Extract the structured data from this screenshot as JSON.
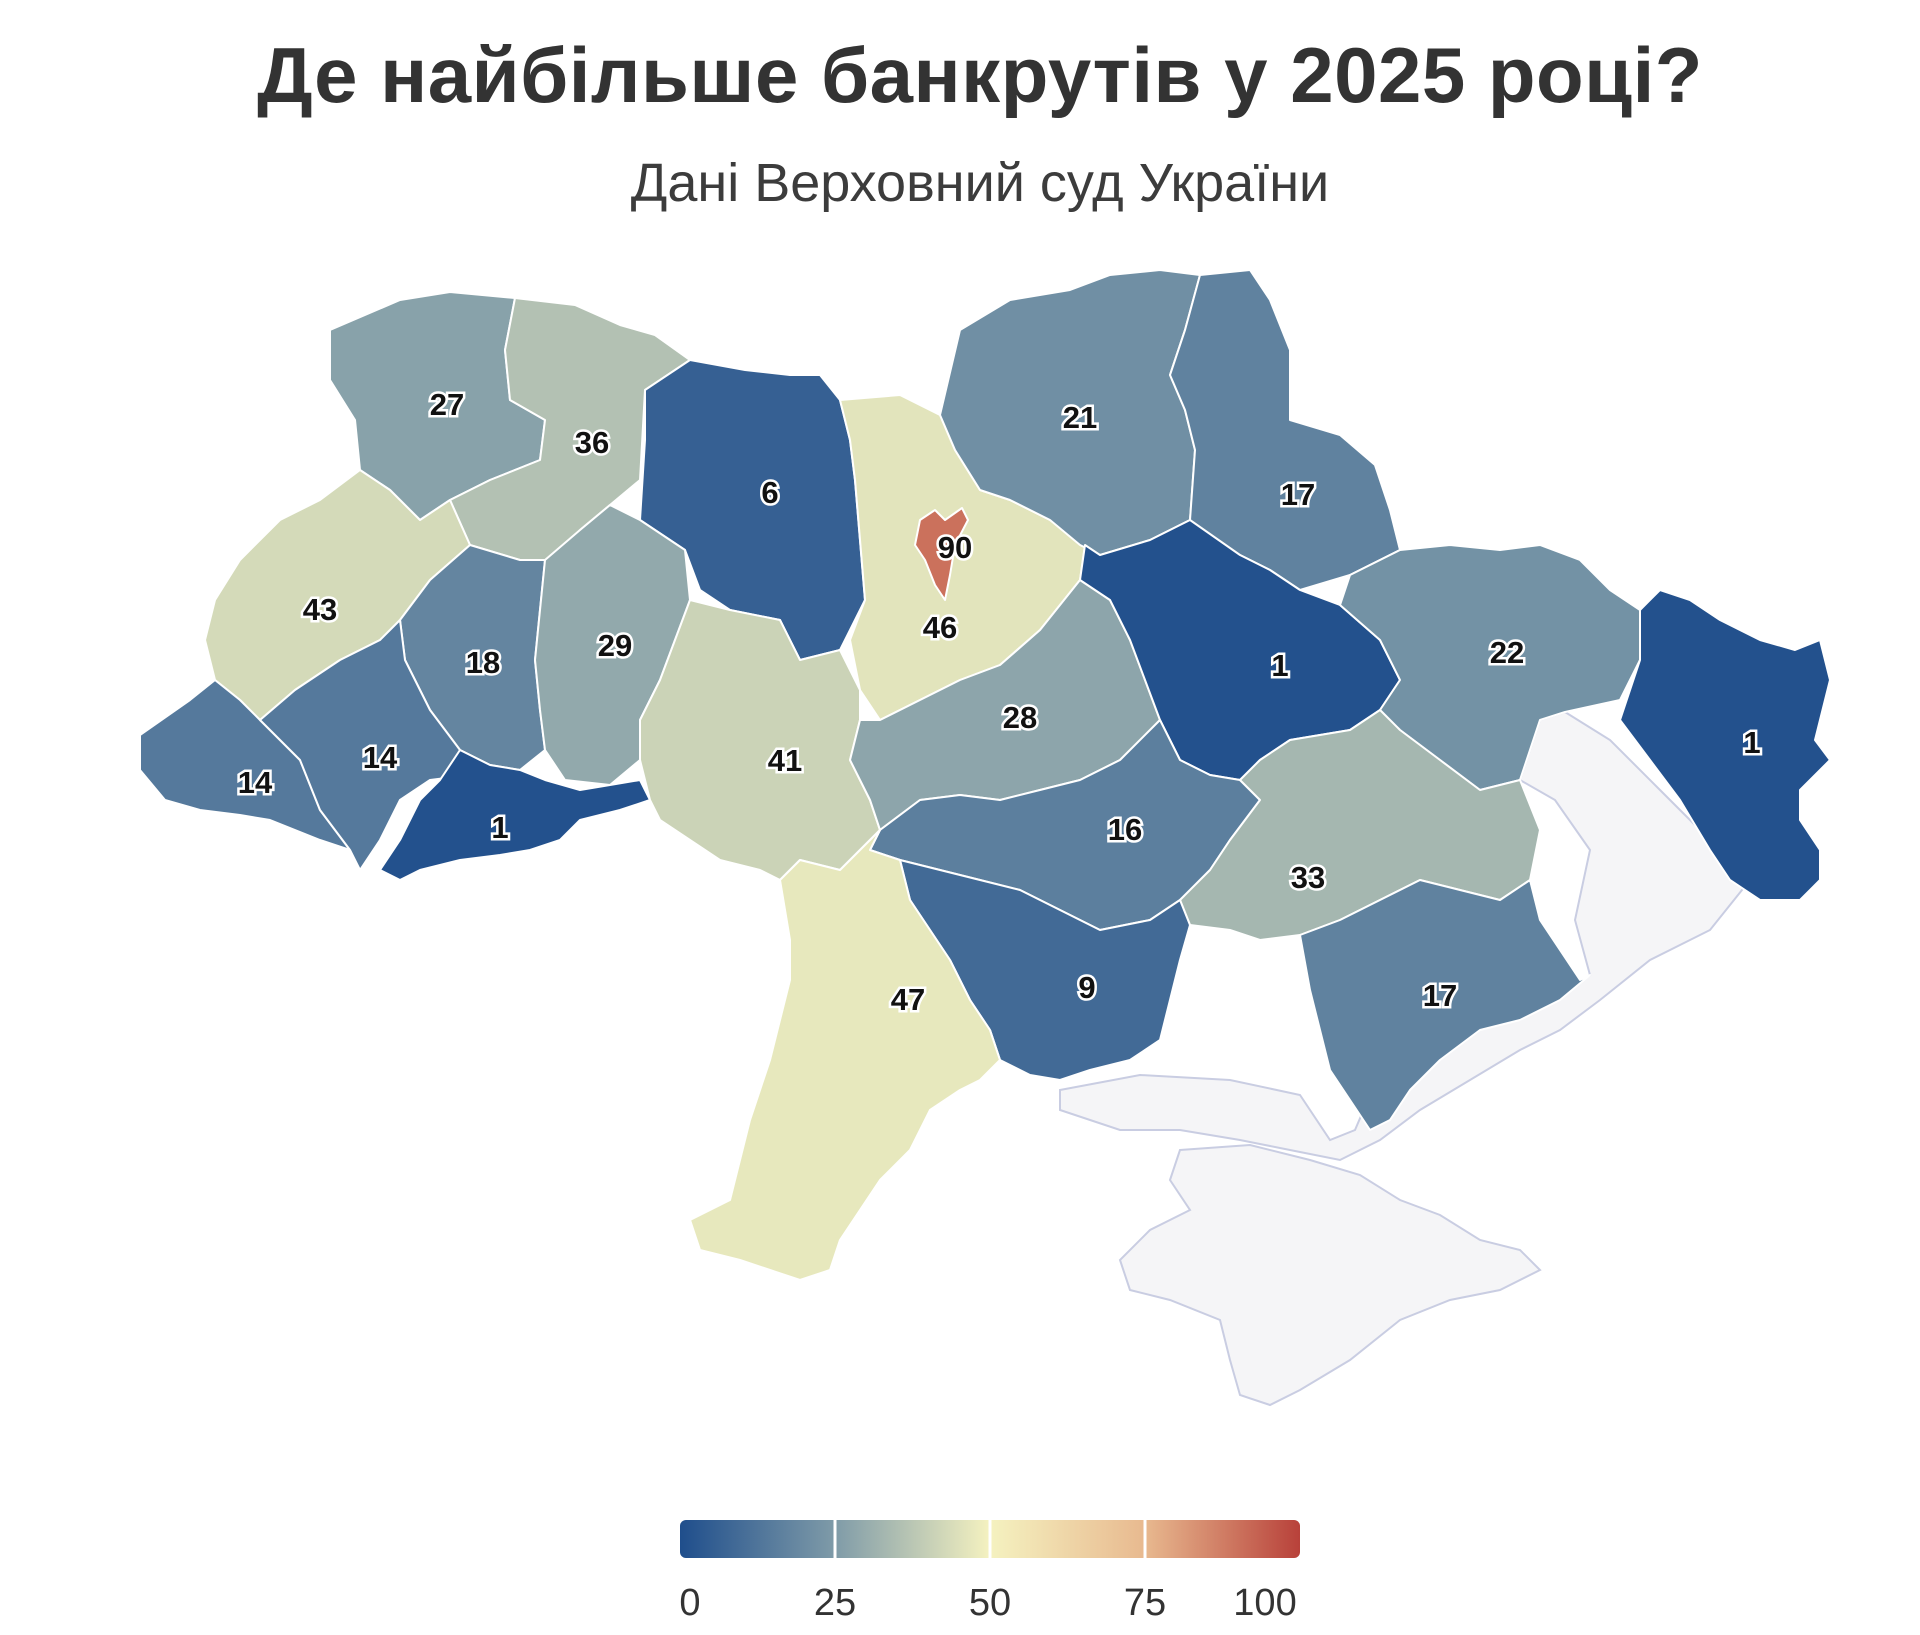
{
  "header": {
    "title": "Де найбільше банкрутів у 2025 році?",
    "subtitle": "Дані Верховний суд України"
  },
  "colors": {
    "scale": [
      "#1f4e8c",
      "#7f9ba8",
      "#f5f2c0",
      "#e8b98f",
      "#b8413a"
    ],
    "no_data": "#f5f5f7",
    "border": "#ffffff"
  },
  "map_data": {
    "regions": [
      {
        "id": "volyn",
        "label": "27",
        "value": 27
      },
      {
        "id": "rivne",
        "label": "36",
        "value": 36
      },
      {
        "id": "zhytomyr",
        "label": "6",
        "value": 6
      },
      {
        "id": "kyiv-city",
        "label": "90",
        "value": 90
      },
      {
        "id": "kyiv-oblast",
        "label": "46",
        "value": 46
      },
      {
        "id": "chernihiv",
        "label": "21",
        "value": 21
      },
      {
        "id": "sumy",
        "label": "17",
        "value": 17
      },
      {
        "id": "lviv",
        "label": "43",
        "value": 43
      },
      {
        "id": "ternopil",
        "label": "18",
        "value": 18
      },
      {
        "id": "khmelnytskyi",
        "label": "29",
        "value": 29
      },
      {
        "id": "zakarpattia",
        "label": "14",
        "value": 14
      },
      {
        "id": "ivano-frankivsk",
        "label": "14",
        "value": 14
      },
      {
        "id": "chernivtsi",
        "label": "1",
        "value": 1
      },
      {
        "id": "vinnytsia",
        "label": "41",
        "value": 41
      },
      {
        "id": "cherkasy",
        "label": "28",
        "value": 28
      },
      {
        "id": "poltava",
        "label": "1",
        "value": 1
      },
      {
        "id": "kharkiv",
        "label": "22",
        "value": 22
      },
      {
        "id": "luhansk",
        "label": "1",
        "value": 1
      },
      {
        "id": "kirovohrad",
        "label": "16",
        "value": 16
      },
      {
        "id": "dnipropetrovsk",
        "label": "33",
        "value": 33
      },
      {
        "id": "mykolaiv",
        "label": "9",
        "value": 9
      },
      {
        "id": "odesa",
        "label": "47",
        "value": 47
      },
      {
        "id": "zaporizhzhia",
        "label": "17",
        "value": 17
      }
    ],
    "legend": {
      "min": 0,
      "max": 100,
      "ticks": [
        "0",
        "25",
        "50",
        "75",
        "100"
      ]
    }
  }
}
